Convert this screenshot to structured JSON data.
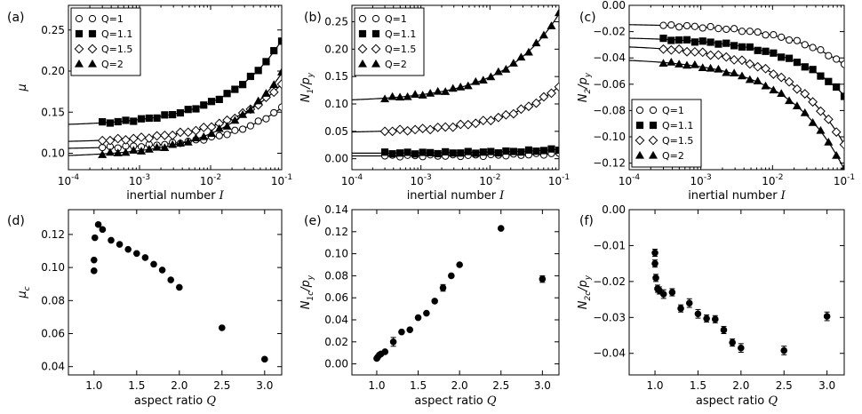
{
  "chart_data": [
    {
      "id": "a",
      "type": "scatter",
      "panel_label": "(a)",
      "xscale": "log",
      "xlim": [
        0.0001,
        0.1
      ],
      "ylim": [
        0.08,
        0.28
      ],
      "xlabel": "inertial number",
      "xlabel_symbol": "I",
      "ylabel": "μ",
      "xticks": [
        0.0001,
        0.001,
        0.01,
        0.1
      ],
      "xtick_labels": [
        [
          "10",
          "-4"
        ],
        [
          "10",
          "-3"
        ],
        [
          "10",
          "-2"
        ],
        [
          "10",
          "-1"
        ]
      ],
      "yticks": [
        0.1,
        0.15,
        0.2,
        0.25
      ],
      "ytick_labels": [
        "0.10",
        "0.15",
        "0.20",
        "0.25"
      ],
      "legend": "top-left",
      "series": [
        {
          "name": "Q=1",
          "marker": "circle-open",
          "fit": {
            "y0": 0.105,
            "k": 0.058,
            "a": 0.06
          },
          "i_start": 0.0003
        },
        {
          "name": "Q=1.1",
          "marker": "square-filled",
          "fit": {
            "y0": 0.133,
            "k": 0.12,
            "a": 0.06
          },
          "i_start": 0.0003
        },
        {
          "name": "Q=1.5",
          "marker": "diamond-open",
          "fit": {
            "y0": 0.113,
            "k": 0.082,
            "a": 0.06
          },
          "i_start": 0.0003
        },
        {
          "name": "Q=2",
          "marker": "triangle-filled",
          "fit": {
            "y0": 0.095,
            "k": 0.115,
            "a": 0.05
          },
          "i_start": 0.0003
        }
      ]
    },
    {
      "id": "b",
      "type": "scatter",
      "panel_label": "(b)",
      "xscale": "log",
      "xlim": [
        0.0001,
        0.1
      ],
      "ylim": [
        -0.02,
        0.28
      ],
      "xlabel": "inertial number",
      "xlabel_symbol": "I",
      "ylabel_main": "N",
      "ylabel_sub": "1",
      "ylabel_den": "/p",
      "ylabel_den_sub": "y",
      "xticks": [
        0.0001,
        0.001,
        0.01,
        0.1
      ],
      "xtick_labels": [
        [
          "10",
          "-4"
        ],
        [
          "10",
          "-3"
        ],
        [
          "10",
          "-2"
        ],
        [
          "10",
          "-1"
        ]
      ],
      "yticks": [
        0.0,
        0.05,
        0.1,
        0.15,
        0.2,
        0.25
      ],
      "ytick_labels": [
        "0.00",
        "0.05",
        "0.10",
        "0.15",
        "0.20",
        "0.25"
      ],
      "legend": "top-left",
      "series": [
        {
          "name": "Q=1",
          "marker": "circle-open",
          "fit": {
            "y0": 0.005,
            "k": 0.005,
            "a": 0.05
          },
          "i_start": 0.0003
        },
        {
          "name": "Q=1.1",
          "marker": "square-filled",
          "fit": {
            "y0": 0.01,
            "k": 0.008,
            "a": 0.05
          },
          "i_start": 0.0003
        },
        {
          "name": "Q=1.5",
          "marker": "diamond-open",
          "fit": {
            "y0": 0.047,
            "k": 0.095,
            "a": 0.05
          },
          "i_start": 0.0003
        },
        {
          "name": "Q=2",
          "marker": "triangle-filled",
          "fit": {
            "y0": 0.104,
            "k": 0.18,
            "a": 0.05
          },
          "i_start": 0.0003
        }
      ]
    },
    {
      "id": "c",
      "type": "scatter",
      "panel_label": "(c)",
      "xscale": "log",
      "xlim": [
        0.0001,
        0.1
      ],
      "ylim": [
        -0.125,
        0.0
      ],
      "xlabel": "inertial number",
      "xlabel_symbol": "I",
      "ylabel_main": "N",
      "ylabel_sub": "2",
      "ylabel_den": "/p",
      "ylabel_den_sub": "y",
      "xticks": [
        0.0001,
        0.001,
        0.01,
        0.1
      ],
      "xtick_labels": [
        [
          "10",
          "-4"
        ],
        [
          "10",
          "-3"
        ],
        [
          "10",
          "-2"
        ],
        [
          "10",
          "-1"
        ]
      ],
      "yticks": [
        0.0,
        -0.02,
        -0.04,
        -0.06,
        -0.08,
        -0.1,
        -0.12
      ],
      "ytick_labels": [
        "0.00",
        "−0.02",
        "−0.04",
        "−0.06",
        "−0.08",
        "−0.10",
        "−0.12"
      ],
      "legend": "bottom-left",
      "series": [
        {
          "name": "Q=1",
          "marker": "circle-open",
          "fit": {
            "y0": -0.014,
            "k": -0.035,
            "a": 0.05
          },
          "i_start": 0.0003
        },
        {
          "name": "Q=1.1",
          "marker": "square-filled",
          "fit": {
            "y0": -0.024,
            "k": -0.05,
            "a": 0.05
          },
          "i_start": 0.0003
        },
        {
          "name": "Q=1.5",
          "marker": "diamond-open",
          "fit": {
            "y0": -0.03,
            "k": -0.085,
            "a": 0.05
          },
          "i_start": 0.0003
        },
        {
          "name": "Q=2",
          "marker": "triangle-filled",
          "fit": {
            "y0": -0.04,
            "k": -0.095,
            "a": 0.05
          },
          "i_start": 0.0003
        }
      ]
    },
    {
      "id": "d",
      "type": "scatter",
      "panel_label": "(d)",
      "xscale": "linear",
      "xlim": [
        0.7,
        3.2
      ],
      "ylim": [
        0.035,
        0.135
      ],
      "xlabel": "aspect ratio",
      "xlabel_symbol": "Q",
      "ylabel_main": "μ",
      "ylabel_sub": "c",
      "xticks": [
        1.0,
        1.5,
        2.0,
        2.5,
        3.0
      ],
      "xtick_labels": [
        "1.0",
        "1.5",
        "2.0",
        "2.5",
        "3.0"
      ],
      "yticks": [
        0.04,
        0.06,
        0.08,
        0.1,
        0.12
      ],
      "ytick_labels": [
        "0.04",
        "0.06",
        "0.08",
        "0.10",
        "0.12"
      ],
      "x": [
        1.0,
        1.0,
        1.01,
        1.05,
        1.1,
        1.2,
        1.3,
        1.4,
        1.5,
        1.6,
        1.7,
        1.8,
        1.9,
        2.0,
        2.5,
        3.0
      ],
      "y": [
        0.098,
        0.1045,
        0.118,
        0.126,
        0.123,
        0.1165,
        0.114,
        0.111,
        0.1085,
        0.106,
        0.102,
        0.0985,
        0.0925,
        0.088,
        0.0635,
        0.0445
      ],
      "err": []
    },
    {
      "id": "e",
      "type": "scatter",
      "panel_label": "(e)",
      "xscale": "linear",
      "xlim": [
        0.7,
        3.2
      ],
      "ylim": [
        -0.01,
        0.14
      ],
      "xlabel": "aspect ratio",
      "xlabel_symbol": "Q",
      "ylabel_main": "N",
      "ylabel_sub": "1c",
      "ylabel_den": "/p",
      "ylabel_den_sub": "y",
      "xticks": [
        1.0,
        1.5,
        2.0,
        2.5,
        3.0
      ],
      "xtick_labels": [
        "1.0",
        "1.5",
        "2.0",
        "2.5",
        "3.0"
      ],
      "yticks": [
        0.0,
        0.02,
        0.04,
        0.06,
        0.08,
        0.1,
        0.12,
        0.14
      ],
      "ytick_labels": [
        "0.00",
        "0.02",
        "0.04",
        "0.06",
        "0.08",
        "0.10",
        "0.12",
        "0.14"
      ],
      "x": [
        1.0,
        1.01,
        1.03,
        1.05,
        1.1,
        1.2,
        1.3,
        1.4,
        1.5,
        1.6,
        1.7,
        1.8,
        1.9,
        2.0,
        2.5,
        3.0
      ],
      "y": [
        0.005,
        0.006,
        0.008,
        0.009,
        0.011,
        0.02,
        0.029,
        0.031,
        0.042,
        0.046,
        0.057,
        0.069,
        0.08,
        0.09,
        0.123,
        0.077
      ],
      "err": [
        0,
        0,
        0,
        0,
        0,
        0.004,
        0,
        0,
        0,
        0,
        0,
        0.003,
        0,
        0,
        0,
        0.003
      ]
    },
    {
      "id": "f",
      "type": "scatter",
      "panel_label": "(f)",
      "xscale": "linear",
      "xlim": [
        0.7,
        3.2
      ],
      "ylim": [
        -0.046,
        0.0
      ],
      "xlabel": "aspect ratio",
      "xlabel_symbol": "Q",
      "ylabel_main": "N",
      "ylabel_sub": "2c",
      "ylabel_den": "/p",
      "ylabel_den_sub": "y",
      "xticks": [
        1.0,
        1.5,
        2.0,
        2.5,
        3.0
      ],
      "xtick_labels": [
        "1.0",
        "1.5",
        "2.0",
        "2.5",
        "3.0"
      ],
      "yticks": [
        0.0,
        -0.01,
        -0.02,
        -0.03,
        -0.04
      ],
      "ytick_labels": [
        "0.00",
        "−0.01",
        "−0.02",
        "−0.03",
        "−0.04"
      ],
      "x": [
        1.0,
        1.0,
        1.01,
        1.03,
        1.05,
        1.1,
        1.2,
        1.3,
        1.4,
        1.5,
        1.6,
        1.7,
        1.8,
        1.9,
        2.0,
        2.5,
        3.0
      ],
      "y": [
        -0.012,
        -0.015,
        -0.019,
        -0.022,
        -0.0225,
        -0.0235,
        -0.023,
        -0.0275,
        -0.026,
        -0.029,
        -0.0303,
        -0.0305,
        -0.0335,
        -0.037,
        -0.0385,
        -0.0392,
        -0.0297
      ],
      "err": [
        0.001,
        0.001,
        0.001,
        0.001,
        0.001,
        0.0012,
        0.001,
        0.001,
        0.0012,
        0.0012,
        0.001,
        0.001,
        0.001,
        0.001,
        0.0012,
        0.0012,
        0.0012
      ]
    }
  ]
}
